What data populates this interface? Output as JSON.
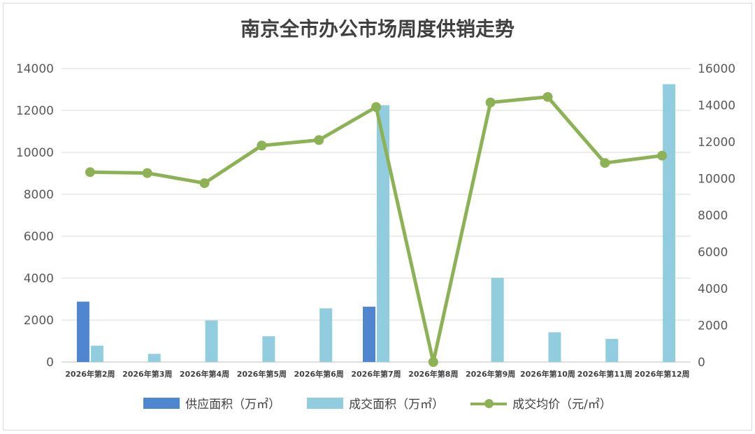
{
  "chart_data": {
    "type": "bar+line",
    "title": "南京全市办公市场周度供销走势",
    "categories": [
      "2026年第2周",
      "2026年第3周",
      "2026年第4周",
      "2026年第5周",
      "2026年第6周",
      "2026年第7周",
      "2026年第8周",
      "2026年第9周",
      "2026年第10周",
      "2026年第11周",
      "2026年第12周"
    ],
    "series": [
      {
        "name": "供应面积（万㎡）",
        "type": "bar",
        "axis": "left",
        "color": "#4f86cf",
        "values": [
          2880,
          0,
          0,
          0,
          0,
          2640,
          0,
          0,
          0,
          0,
          0
        ]
      },
      {
        "name": "成交面积（万㎡）",
        "type": "bar",
        "axis": "left",
        "color": "#92cddf",
        "values": [
          780,
          390,
          1980,
          1230,
          2560,
          12250,
          0,
          4020,
          1420,
          1100,
          13250
        ]
      },
      {
        "name": "成交均价（元/㎡）",
        "type": "line",
        "axis": "right",
        "color": "#8db255",
        "values": [
          10350,
          10300,
          9750,
          11800,
          12100,
          13900,
          0,
          14150,
          14450,
          10850,
          11250
        ]
      }
    ],
    "y_left": {
      "min": 0,
      "max": 14000,
      "ticks": [
        "0",
        "2000",
        "4000",
        "6000",
        "8000",
        "10000",
        "12000",
        "14000"
      ]
    },
    "y_right": {
      "min": 0,
      "max": 16000,
      "ticks": [
        "0",
        "2000",
        "4000",
        "6000",
        "8000",
        "10000",
        "12000",
        "14000",
        "16000"
      ]
    },
    "grid": true,
    "legend": "bottom"
  }
}
